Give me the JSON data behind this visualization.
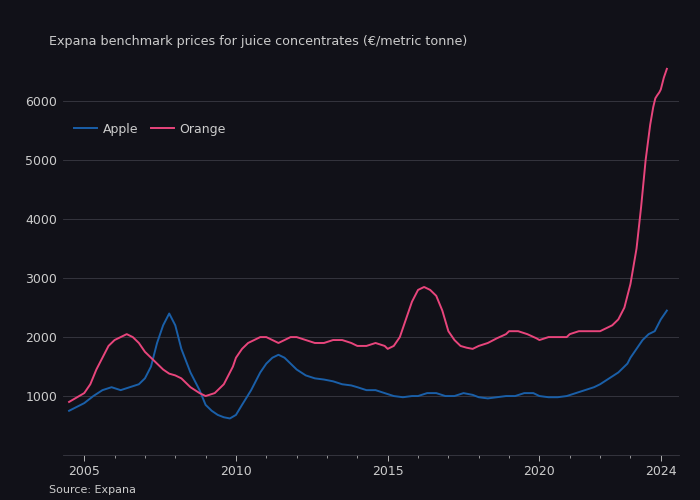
{
  "title": "Expana benchmark prices for juice concentrates (€/metric tonne)",
  "source": "Source: Expana",
  "apple_color": "#1a5fa8",
  "orange_color": "#e8457c",
  "background_color": "#111118",
  "text_color": "#cccccc",
  "grid_color": "#3a3a44",
  "ylim": [
    0,
    6700
  ],
  "yticks": [
    1000,
    2000,
    3000,
    4000,
    5000,
    6000
  ],
  "xlim": [
    2004.3,
    2024.6
  ],
  "xtick_years": [
    2005,
    2010,
    2015,
    2020,
    2024
  ],
  "apple_data": [
    [
      2004.5,
      750
    ],
    [
      2005.0,
      880
    ],
    [
      2005.3,
      1000
    ],
    [
      2005.6,
      1100
    ],
    [
      2005.9,
      1150
    ],
    [
      2006.2,
      1100
    ],
    [
      2006.5,
      1150
    ],
    [
      2006.8,
      1200
    ],
    [
      2007.0,
      1300
    ],
    [
      2007.2,
      1500
    ],
    [
      2007.4,
      1900
    ],
    [
      2007.6,
      2200
    ],
    [
      2007.8,
      2400
    ],
    [
      2008.0,
      2200
    ],
    [
      2008.2,
      1800
    ],
    [
      2008.5,
      1400
    ],
    [
      2008.8,
      1100
    ],
    [
      2009.0,
      850
    ],
    [
      2009.2,
      750
    ],
    [
      2009.4,
      680
    ],
    [
      2009.6,
      640
    ],
    [
      2009.8,
      620
    ],
    [
      2010.0,
      680
    ],
    [
      2010.2,
      850
    ],
    [
      2010.5,
      1100
    ],
    [
      2010.8,
      1400
    ],
    [
      2011.0,
      1550
    ],
    [
      2011.2,
      1650
    ],
    [
      2011.4,
      1700
    ],
    [
      2011.6,
      1650
    ],
    [
      2011.8,
      1550
    ],
    [
      2012.0,
      1450
    ],
    [
      2012.3,
      1350
    ],
    [
      2012.6,
      1300
    ],
    [
      2012.9,
      1280
    ],
    [
      2013.2,
      1250
    ],
    [
      2013.5,
      1200
    ],
    [
      2013.8,
      1180
    ],
    [
      2014.0,
      1150
    ],
    [
      2014.3,
      1100
    ],
    [
      2014.6,
      1100
    ],
    [
      2014.9,
      1050
    ],
    [
      2015.2,
      1000
    ],
    [
      2015.5,
      980
    ],
    [
      2015.8,
      1000
    ],
    [
      2016.0,
      1000
    ],
    [
      2016.3,
      1050
    ],
    [
      2016.6,
      1050
    ],
    [
      2016.9,
      1000
    ],
    [
      2017.2,
      1000
    ],
    [
      2017.5,
      1050
    ],
    [
      2017.8,
      1020
    ],
    [
      2018.0,
      980
    ],
    [
      2018.3,
      960
    ],
    [
      2018.6,
      980
    ],
    [
      2018.9,
      1000
    ],
    [
      2019.2,
      1000
    ],
    [
      2019.5,
      1050
    ],
    [
      2019.8,
      1050
    ],
    [
      2020.0,
      1000
    ],
    [
      2020.3,
      980
    ],
    [
      2020.6,
      980
    ],
    [
      2020.9,
      1000
    ],
    [
      2021.2,
      1050
    ],
    [
      2021.5,
      1100
    ],
    [
      2021.8,
      1150
    ],
    [
      2022.0,
      1200
    ],
    [
      2022.3,
      1300
    ],
    [
      2022.6,
      1400
    ],
    [
      2022.9,
      1550
    ],
    [
      2023.0,
      1650
    ],
    [
      2023.2,
      1800
    ],
    [
      2023.4,
      1950
    ],
    [
      2023.6,
      2050
    ],
    [
      2023.8,
      2100
    ],
    [
      2024.0,
      2300
    ],
    [
      2024.2,
      2450
    ]
  ],
  "orange_data": [
    [
      2004.5,
      900
    ],
    [
      2005.0,
      1050
    ],
    [
      2005.2,
      1200
    ],
    [
      2005.4,
      1450
    ],
    [
      2005.6,
      1650
    ],
    [
      2005.8,
      1850
    ],
    [
      2006.0,
      1950
    ],
    [
      2006.2,
      2000
    ],
    [
      2006.4,
      2050
    ],
    [
      2006.6,
      2000
    ],
    [
      2006.8,
      1900
    ],
    [
      2007.0,
      1750
    ],
    [
      2007.2,
      1650
    ],
    [
      2007.4,
      1550
    ],
    [
      2007.6,
      1450
    ],
    [
      2007.8,
      1380
    ],
    [
      2008.0,
      1350
    ],
    [
      2008.2,
      1300
    ],
    [
      2008.5,
      1150
    ],
    [
      2008.8,
      1050
    ],
    [
      2009.0,
      1000
    ],
    [
      2009.3,
      1050
    ],
    [
      2009.6,
      1200
    ],
    [
      2009.9,
      1500
    ],
    [
      2010.0,
      1650
    ],
    [
      2010.2,
      1800
    ],
    [
      2010.4,
      1900
    ],
    [
      2010.6,
      1950
    ],
    [
      2010.8,
      2000
    ],
    [
      2011.0,
      2000
    ],
    [
      2011.2,
      1950
    ],
    [
      2011.4,
      1900
    ],
    [
      2011.6,
      1950
    ],
    [
      2011.8,
      2000
    ],
    [
      2012.0,
      2000
    ],
    [
      2012.3,
      1950
    ],
    [
      2012.6,
      1900
    ],
    [
      2012.9,
      1900
    ],
    [
      2013.2,
      1950
    ],
    [
      2013.5,
      1950
    ],
    [
      2013.8,
      1900
    ],
    [
      2014.0,
      1850
    ],
    [
      2014.3,
      1850
    ],
    [
      2014.6,
      1900
    ],
    [
      2014.9,
      1850
    ],
    [
      2015.0,
      1800
    ],
    [
      2015.2,
      1850
    ],
    [
      2015.4,
      2000
    ],
    [
      2015.6,
      2300
    ],
    [
      2015.8,
      2600
    ],
    [
      2016.0,
      2800
    ],
    [
      2016.2,
      2850
    ],
    [
      2016.4,
      2800
    ],
    [
      2016.6,
      2700
    ],
    [
      2016.8,
      2450
    ],
    [
      2017.0,
      2100
    ],
    [
      2017.2,
      1950
    ],
    [
      2017.4,
      1850
    ],
    [
      2017.6,
      1820
    ],
    [
      2017.8,
      1800
    ],
    [
      2018.0,
      1850
    ],
    [
      2018.3,
      1900
    ],
    [
      2018.6,
      1980
    ],
    [
      2018.9,
      2050
    ],
    [
      2019.0,
      2100
    ],
    [
      2019.3,
      2100
    ],
    [
      2019.6,
      2050
    ],
    [
      2019.9,
      1980
    ],
    [
      2020.0,
      1950
    ],
    [
      2020.3,
      2000
    ],
    [
      2020.6,
      2000
    ],
    [
      2020.9,
      2000
    ],
    [
      2021.0,
      2050
    ],
    [
      2021.3,
      2100
    ],
    [
      2021.6,
      2100
    ],
    [
      2021.9,
      2100
    ],
    [
      2022.0,
      2100
    ],
    [
      2022.2,
      2150
    ],
    [
      2022.4,
      2200
    ],
    [
      2022.6,
      2300
    ],
    [
      2022.8,
      2500
    ],
    [
      2023.0,
      2900
    ],
    [
      2023.2,
      3500
    ],
    [
      2023.35,
      4200
    ],
    [
      2023.5,
      5000
    ],
    [
      2023.65,
      5600
    ],
    [
      2023.75,
      5900
    ],
    [
      2023.82,
      6050
    ],
    [
      2023.88,
      6100
    ],
    [
      2023.95,
      6150
    ],
    [
      2024.0,
      6200
    ],
    [
      2024.1,
      6400
    ],
    [
      2024.2,
      6550
    ]
  ]
}
